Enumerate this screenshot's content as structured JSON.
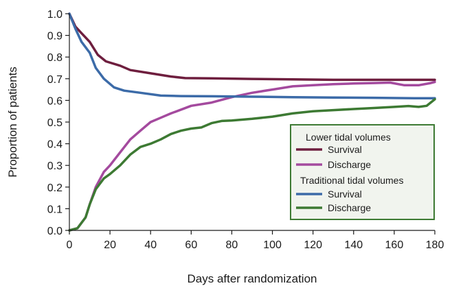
{
  "chart_data": {
    "type": "line",
    "title": "",
    "xlabel": "Days after randomization",
    "ylabel": "Proportion of patients",
    "xlim": [
      0,
      180
    ],
    "ylim": [
      0.0,
      1.0
    ],
    "xticks": [
      "0",
      "20",
      "40",
      "60",
      "80",
      "100",
      "120",
      "140",
      "160",
      "180"
    ],
    "yticks": [
      "0.0",
      "0.1",
      "0.2",
      "0.3",
      "0.4",
      "0.5",
      "0.6",
      "0.7",
      "0.8",
      "0.9",
      "1.0"
    ],
    "grid": false,
    "legend_position": "bottom-right",
    "legend_groups": [
      {
        "title": "Lower tidal volumes",
        "series": [
          {
            "name": "Survival",
            "color": "#6e1e3e"
          },
          {
            "name": "Discharge",
            "color": "#a44a9e"
          }
        ]
      },
      {
        "title": "Traditional tidal volumes",
        "series": [
          {
            "name": "Survival",
            "color": "#3c6ba8"
          },
          {
            "name": "Discharge",
            "color": "#3d7a33"
          }
        ]
      }
    ],
    "legend_border_color": "#3d7a33",
    "series": [
      {
        "name": "Survival",
        "group": "Lower tidal volumes",
        "color": "#6e1e3e",
        "points": [
          [
            0,
            1.0
          ],
          [
            3,
            0.94
          ],
          [
            6,
            0.91
          ],
          [
            10,
            0.87
          ],
          [
            14,
            0.81
          ],
          [
            18,
            0.78
          ],
          [
            25,
            0.76
          ],
          [
            30,
            0.74
          ],
          [
            40,
            0.725
          ],
          [
            50,
            0.71
          ],
          [
            57,
            0.703
          ],
          [
            70,
            0.702
          ],
          [
            90,
            0.699
          ],
          [
            110,
            0.697
          ],
          [
            130,
            0.695
          ],
          [
            150,
            0.695
          ],
          [
            170,
            0.695
          ],
          [
            180,
            0.695
          ]
        ]
      },
      {
        "name": "Discharge",
        "group": "Lower tidal volumes",
        "color": "#a44a9e",
        "points": [
          [
            0,
            0.0
          ],
          [
            4,
            0.01
          ],
          [
            8,
            0.06
          ],
          [
            10,
            0.12
          ],
          [
            13,
            0.2
          ],
          [
            17,
            0.27
          ],
          [
            20,
            0.3
          ],
          [
            25,
            0.36
          ],
          [
            30,
            0.42
          ],
          [
            35,
            0.46
          ],
          [
            40,
            0.5
          ],
          [
            45,
            0.52
          ],
          [
            50,
            0.54
          ],
          [
            60,
            0.575
          ],
          [
            70,
            0.59
          ],
          [
            80,
            0.615
          ],
          [
            90,
            0.635
          ],
          [
            100,
            0.65
          ],
          [
            110,
            0.665
          ],
          [
            120,
            0.67
          ],
          [
            130,
            0.675
          ],
          [
            140,
            0.678
          ],
          [
            150,
            0.68
          ],
          [
            158,
            0.682
          ],
          [
            165,
            0.67
          ],
          [
            172,
            0.67
          ],
          [
            178,
            0.68
          ],
          [
            180,
            0.685
          ]
        ]
      },
      {
        "name": "Survival",
        "group": "Traditional tidal volumes",
        "color": "#3c6ba8",
        "points": [
          [
            0,
            1.0
          ],
          [
            3,
            0.93
          ],
          [
            6,
            0.87
          ],
          [
            10,
            0.82
          ],
          [
            13,
            0.75
          ],
          [
            17,
            0.7
          ],
          [
            22,
            0.66
          ],
          [
            27,
            0.645
          ],
          [
            35,
            0.635
          ],
          [
            45,
            0.622
          ],
          [
            55,
            0.62
          ],
          [
            70,
            0.619
          ],
          [
            90,
            0.617
          ],
          [
            110,
            0.615
          ],
          [
            130,
            0.613
          ],
          [
            150,
            0.612
          ],
          [
            170,
            0.61
          ],
          [
            180,
            0.61
          ]
        ]
      },
      {
        "name": "Discharge",
        "group": "Traditional tidal volumes",
        "color": "#3d7a33",
        "points": [
          [
            0,
            0.0
          ],
          [
            4,
            0.01
          ],
          [
            8,
            0.06
          ],
          [
            10,
            0.12
          ],
          [
            13,
            0.19
          ],
          [
            17,
            0.24
          ],
          [
            20,
            0.26
          ],
          [
            25,
            0.3
          ],
          [
            30,
            0.35
          ],
          [
            35,
            0.385
          ],
          [
            40,
            0.4
          ],
          [
            45,
            0.42
          ],
          [
            50,
            0.445
          ],
          [
            55,
            0.46
          ],
          [
            60,
            0.47
          ],
          [
            65,
            0.475
          ],
          [
            70,
            0.495
          ],
          [
            75,
            0.505
          ],
          [
            80,
            0.507
          ],
          [
            90,
            0.515
          ],
          [
            100,
            0.525
          ],
          [
            110,
            0.54
          ],
          [
            120,
            0.55
          ],
          [
            130,
            0.555
          ],
          [
            140,
            0.56
          ],
          [
            150,
            0.565
          ],
          [
            160,
            0.57
          ],
          [
            167,
            0.574
          ],
          [
            172,
            0.57
          ],
          [
            176,
            0.575
          ],
          [
            180,
            0.605
          ]
        ]
      }
    ]
  }
}
